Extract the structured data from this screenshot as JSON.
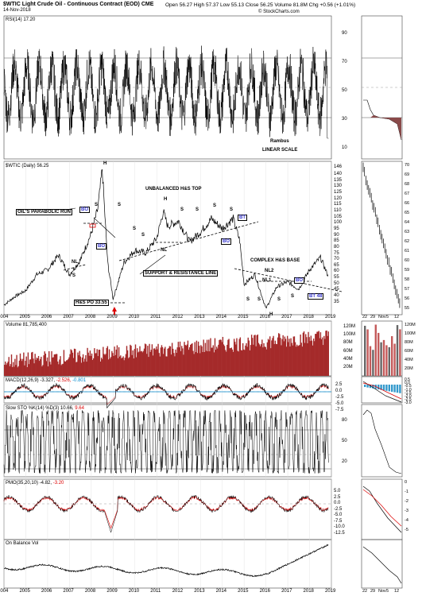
{
  "header": {
    "title": "$WTIC Light Crude Oil - Continuous Contract (EOD) CME",
    "date": "14-Nov-2018",
    "quote": "Open 56.27  High 57.37  Low 55.13  Close 56.25  Volume 81.8M  Chg +0.56 (+1.01%)",
    "site": "© StockCharts.com"
  },
  "panels": {
    "rsi": {
      "label": "RSI(14) 17.20",
      "note1": "Rambus",
      "note2": "LINEAR SCALE",
      "ticks": [
        "90",
        "70",
        "50",
        "30",
        "10"
      ]
    },
    "price": {
      "label": "$WTIC (Daily) 56.25",
      "ticks": [
        "146",
        "140",
        "135",
        "130",
        "125",
        "120",
        "115",
        "110",
        "105",
        "100",
        "95",
        "90",
        "85",
        "80",
        "75",
        "70",
        "65",
        "60",
        "55",
        "50",
        "45",
        "40",
        "35"
      ]
    },
    "volume": {
      "label": "Volume 81,785,400",
      "ticks": [
        "120M",
        "100M",
        "80M",
        "60M",
        "40M",
        "20M"
      ]
    },
    "macd": {
      "label_a": "MACD(12,26,9) -3.327,",
      "label_b": "-2.526,",
      "label_c": "-0.801",
      "ticks": [
        "2.5",
        "0.0",
        "-2.5",
        "-5.0",
        "-7.5"
      ]
    },
    "sto": {
      "label_a": "Slow STO %K(14) %D(3) 10.66,",
      "label_b": "9.64",
      "ticks": [
        "80",
        "50",
        "20"
      ]
    },
    "pmo": {
      "label_a": "PMO(35,20,10) -4.82,",
      "label_b": "-3.20",
      "ticks": [
        "5.0",
        "2.5",
        "0.0",
        "-2.5",
        "-5.0",
        "-7.5",
        "-10.0",
        "-12.5"
      ]
    },
    "obv": {
      "label": "On Balance Vol"
    }
  },
  "years": [
    "2004",
    "2005",
    "2006",
    "2007",
    "2008",
    "2009",
    "2010",
    "2011",
    "2012",
    "2013",
    "2014",
    "2015",
    "2016",
    "2017",
    "2018",
    "2019"
  ],
  "mini_x": [
    "22",
    "29",
    "Nov",
    "5",
    "12"
  ],
  "mini_price_ticks": [
    "70",
    "69",
    "68",
    "67",
    "66",
    "65",
    "64",
    "63",
    "62",
    "61",
    "60",
    "59",
    "58",
    "57",
    "56",
    "55"
  ],
  "mini_vol_ticks": [
    "120M",
    "100M",
    "80M",
    "60M",
    "40M",
    "20M"
  ],
  "mini_macd_ticks": [
    "0.5",
    "0.0",
    "-0.5",
    "-1.0",
    "-1.5",
    "-2.0",
    "-2.5",
    "-3.0"
  ],
  "mini_pmo_ticks": [
    "0",
    "-1",
    "-2",
    "-3",
    "-4",
    "-5"
  ],
  "annotations": {
    "parabolic": "OIL'S PARABOLIC RUN",
    "hs_top": "UNBALANCED H&S TOP",
    "support": "SUPPORT & RESISTANCE LINE",
    "hs_po": "H&S PO 33.55",
    "complex": "COMPLEX H&S BASE",
    "bo": "BO",
    "bt": "BT",
    "bt48": "BT 48",
    "nl": "NL",
    "nl1": "NL1",
    "nl2": "NL2",
    "h": "H",
    "s": "S"
  },
  "chart_data": {
    "type": "line",
    "title": "$WTIC Light Crude Oil - Continuous Contract (EOD) CME",
    "x": [
      2004.0,
      2004.5,
      2005.0,
      2005.5,
      2006.0,
      2006.5,
      2007.0,
      2007.5,
      2008.0,
      2008.3,
      2008.5,
      2008.75,
      2009.0,
      2009.5,
      2010.0,
      2010.5,
      2011.0,
      2011.3,
      2011.5,
      2012.0,
      2012.5,
      2013.0,
      2013.5,
      2014.0,
      2014.5,
      2014.8,
      2015.0,
      2015.5,
      2016.0,
      2016.5,
      2017.0,
      2017.5,
      2018.0,
      2018.5,
      2018.87
    ],
    "values": [
      33,
      40,
      45,
      58,
      62,
      74,
      58,
      70,
      92,
      112,
      145,
      68,
      38,
      68,
      78,
      76,
      88,
      110,
      98,
      102,
      85,
      93,
      104,
      96,
      104,
      86,
      50,
      58,
      30,
      48,
      52,
      46,
      62,
      72,
      56
    ],
    "ylim": [
      25,
      146
    ],
    "xlim": [
      2004,
      2019
    ]
  }
}
